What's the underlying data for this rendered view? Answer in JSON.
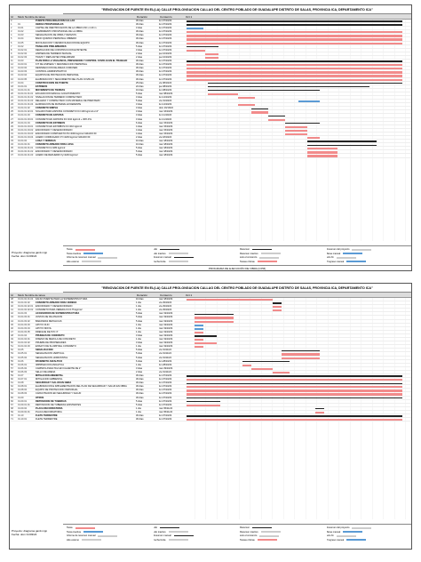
{
  "page": {
    "title": "\"RENOVACION DE PUENTE EN EL(LA) CALLE PROLONGACION CALLAO DEL CENTRO POBLADO DE GUADALUPE DISTRITO DE SALAS, PROVINCIA ICA, DEPARTAMENTO ICA\"",
    "header": {
      "id": "Id",
      "mode": "Modo",
      "name": "Nombre de tarea",
      "duration": "Duración",
      "start": "Comienzo",
      "timeline": [
        "Oct 1",
        "Oct 4",
        "Oct 7",
        "Oct 10",
        "Oct 13",
        "Oct 16",
        "Oct 19",
        "Oct 22",
        "Oct 25",
        "Oct 28",
        "Oct 31",
        "Nov 3",
        "Nov 6",
        "Nov 9",
        "Nov 12",
        "Nov 15",
        "Nov 18"
      ]
    },
    "project_label": "Proyecto: diagrama gantt.mpp",
    "date_label": "Fecha: dom 31/03/24",
    "footer": "PROGRAMA DE EJECUCIÓN DE OBRA (CPM)",
    "legend": [
      {
        "label": "Tarea",
        "style": "red"
      },
      {
        "label": "Hito",
        "style": "blk"
      },
      {
        "label": "Resumen",
        "style": "blk"
      },
      {
        "label": "Resumen del proyecto",
        "style": "gray"
      },
      {
        "label": "Tarea inactiva",
        "style": "blue"
      },
      {
        "label": "Hito inactivo",
        "style": "gray"
      },
      {
        "label": "Resumen inactivo",
        "style": "gray"
      },
      {
        "label": "Tarea manual",
        "style": "blue"
      },
      {
        "label": "Informe de resumen manual",
        "style": "gray"
      },
      {
        "label": "Resumen manual",
        "style": "blk"
      },
      {
        "label": "solo el comienzo",
        "style": "gray"
      },
      {
        "label": "solo fin",
        "style": "gray"
      },
      {
        "label": "Hito externo",
        "style": "gray"
      },
      {
        "label": "Fecha límite",
        "style": "gray"
      },
      {
        "label": "Tareas críticas",
        "style": "red"
      },
      {
        "label": "Progreso manual",
        "style": "blue"
      }
    ]
  },
  "sheet1_rows": [
    {
      "id": "0",
      "code": "",
      "name": "PUENTE PROLONGACION CALLAO",
      "dur": "30 días",
      "start": "lun 07/10/24",
      "kind": "summary",
      "bar": [
        0,
        100
      ]
    },
    {
      "id": "1",
      "code": "01",
      "name": "OBRAS PROVISIONALES",
      "dur": "30 días",
      "start": "lun 07/10/24",
      "kind": "summary",
      "bar": [
        0,
        100
      ]
    },
    {
      "id": "2",
      "code": "01.01",
      "name": "CARTEL DE IDENTIFICACION DE LA OBRA 3.60 x 2.40 m",
      "dur": "3 días",
      "start": "lun 07/10/24",
      "kind": "blue",
      "bar": [
        0,
        8
      ]
    },
    {
      "id": "3",
      "code": "01.02",
      "name": "CAMPAMENTO PROVISIONAL DE LA OBRA",
      "dur": "30 días",
      "start": "lun 07/10/24",
      "kind": "task",
      "bar": [
        0,
        100
      ]
    },
    {
      "id": "4",
      "code": "01.03",
      "name": "SEÑALIZACION DE OBRA Y DESVIOS",
      "dur": "30 días",
      "start": "lun 07/10/24",
      "kind": "task",
      "bar": [
        0,
        100
      ]
    },
    {
      "id": "5",
      "code": "01.04",
      "name": "BAÑO QUIMICO PERSONAL OBRERO",
      "dur": "30 días",
      "start": "lun 07/10/24",
      "kind": "task",
      "bar": [
        0,
        100
      ]
    },
    {
      "id": "6",
      "code": "01.05",
      "name": "MOVILIZACION Y DESMOVILIZACION DE EQUIPO",
      "dur": "30 días",
      "start": "lun 07/10/24",
      "kind": "task",
      "bar": [
        0,
        100
      ]
    },
    {
      "id": "7",
      "code": "01.02",
      "name": "TRABAJOS PRELIMINARES",
      "dur": "5 días",
      "start": "lun 07/10/24",
      "kind": "summary",
      "bar": [
        0,
        15
      ]
    },
    {
      "id": "8",
      "code": "01.02.01",
      "name": "DEMOLICION DE CONSTRUCCION EXISTENTE",
      "dur": "3 días",
      "start": "lun 07/10/24",
      "kind": "task",
      "bar": [
        0,
        9
      ]
    },
    {
      "id": "9",
      "code": "01.02.02",
      "name": "LIMPIEZA DE TERRENO MANUAL",
      "dur": "2 días",
      "start": "jue 10/10/24",
      "kind": "task",
      "bar": [
        9,
        15
      ]
    },
    {
      "id": "10",
      "code": "01.02.03",
      "name": "TRAZO Y REPLANTEO PRELIMINAR",
      "dur": "2 días",
      "start": "jue 10/10/24",
      "kind": "task",
      "bar": [
        9,
        15
      ]
    },
    {
      "id": "11",
      "code": "01.03",
      "name": "PLAN PARA LA VIGILANCIA, PREVENCION Y CONTROL COVID-19 EN EL TRABAJO",
      "dur": "30 días",
      "start": "lun 07/10/24",
      "kind": "summary",
      "bar": [
        0,
        100
      ]
    },
    {
      "id": "12",
      "code": "01.03.01",
      "name": "KIT DE LIMPIEZA Y DESINFECCION PERSONAL",
      "dur": "30 días",
      "start": "lun 07/10/24",
      "kind": "task",
      "bar": [
        0,
        100
      ]
    },
    {
      "id": "13",
      "code": "01.03.02",
      "name": "DESINFECCION DE AREAS COMUNES",
      "dur": "30 días",
      "start": "lun 07/10/24",
      "kind": "task",
      "bar": [
        0,
        100
      ]
    },
    {
      "id": "14",
      "code": "01.03.03",
      "name": "CONTROL ADMINISTRATIVO",
      "dur": "30 días",
      "start": "lun 07/10/24",
      "kind": "task",
      "bar": [
        0,
        100
      ]
    },
    {
      "id": "15",
      "code": "01.03.04",
      "name": "EQUIPOS DE PROTECCION PERSONAL",
      "dur": "30 días",
      "start": "lun 07/10/24",
      "kind": "task",
      "bar": [
        0,
        100
      ]
    },
    {
      "id": "16",
      "code": "01.03.05",
      "name": "ELABORACION Y SEGUIMIENTO DEL PLAN COVID-19",
      "dur": "30 días",
      "start": "lun 07/10/24",
      "kind": "task",
      "bar": [
        0,
        100
      ]
    },
    {
      "id": "17",
      "code": "01.04",
      "name": "CONSTRUCCION DE PUENTE",
      "dur": "25 días",
      "start": "vie 08/10/24",
      "kind": "summary",
      "bar": [
        10,
        100
      ]
    },
    {
      "id": "18",
      "code": "01.04.01",
      "name": "ESTRIBOS",
      "dur": "22 días",
      "start": "jue 08/10/24",
      "kind": "summary",
      "bar": [
        10,
        85
      ]
    },
    {
      "id": "19",
      "code": "01.04.01.01",
      "name": "MOVIMIENTO DE TIERRAS",
      "dur": "16 días",
      "start": "lun 08/10/24",
      "kind": "summary",
      "bar": [
        10,
        62
      ]
    },
    {
      "id": "20",
      "code": "01.04.01.01.01",
      "name": "EXCAVACION MANUAL C/AGOTAMIENTO",
      "dur": "5 días",
      "start": "mar 08/10/24",
      "kind": "task",
      "bar": [
        10,
        24
      ]
    },
    {
      "id": "21",
      "code": "01.04.01.01.02",
      "name": "NIVELACION DE TERRENO COMPACTADO",
      "dur": "3 días",
      "start": "lun 14/10/24",
      "kind": "task",
      "bar": [
        24,
        32
      ]
    },
    {
      "id": "22",
      "code": "01.04.01.01.03",
      "name": "RELLENO Y COMPACTADO CON MATERIAL DE PRESTAMO",
      "dur": "5 días",
      "start": "vie 31/10/24",
      "kind": "blue",
      "bar": [
        52,
        62
      ]
    },
    {
      "id": "23",
      "code": "01.04.01.01.04",
      "name": "ELIMINACION DE MATERIAL EXCEDENTE",
      "dur": "3 días",
      "start": "lun 14/10/24",
      "kind": "task",
      "bar": [
        24,
        32
      ]
    },
    {
      "id": "24",
      "code": "01.04.01.02",
      "name": "CONCRETO SIMPLE",
      "dur": "3 días",
      "start": "dom 16/10/24",
      "kind": "summary",
      "bar": [
        30,
        38
      ]
    },
    {
      "id": "25",
      "code": "01.04.01.02.01",
      "name": "SOLADO PARA ZAPATAS CONCRETO FC=100 kg/cm2 e=4\"",
      "dur": "3 días",
      "start": "mar 16/10/24",
      "kind": "task",
      "bar": [
        30,
        38
      ]
    },
    {
      "id": "26",
      "code": "01.04.01.03",
      "name": "CONCRETO EN ZAPATAS",
      "dur": "3 días",
      "start": "lun 11/10/24",
      "kind": "summary",
      "bar": [
        38,
        46
      ]
    },
    {
      "id": "27",
      "code": "01.04.01.03.01",
      "name": "CONCRETO EN ZAPATAS FC=210 kg/cm2 + 30% P.G",
      "dur": "3 días",
      "start": "lun 11/10/24",
      "kind": "task",
      "bar": [
        38,
        46
      ]
    },
    {
      "id": "28",
      "code": "01.04.01.04",
      "name": "CONCRETO EN ESTRIBOS",
      "dur": "6 días",
      "start": "mar 15/10/24",
      "kind": "summary",
      "bar": [
        46,
        62
      ]
    },
    {
      "id": "29",
      "code": "01.04.01.04.01",
      "name": "CONCRETO EN ESTRIBOS FC=210 kg/cm2",
      "dur": "4 días",
      "start": "mar 15/10/24",
      "kind": "task",
      "bar": [
        46,
        56
      ]
    },
    {
      "id": "30",
      "code": "01.04.01.04.02",
      "name": "ENCOFRADO Y DESENCOFRADO",
      "dur": "4 días",
      "start": "mar 15/10/24",
      "kind": "task",
      "bar": [
        46,
        56
      ]
    },
    {
      "id": "31",
      "code": "01.04.01.04.03",
      "name": "ENCOFRADO COMPUESTO PU=4000 kg/cm2 GRADO 60",
      "dur": "4 días",
      "start": "mar 15/10/24",
      "kind": "task",
      "bar": [
        46,
        56
      ]
    },
    {
      "id": "32",
      "code": "01.04.01.04.04",
      "name": "ACERO CORRUGADO FY=4200 kg/cm2 GRADO 60",
      "dur": "2 días",
      "start": "vie 18/10/24",
      "kind": "task",
      "bar": [
        56,
        62
      ]
    },
    {
      "id": "33",
      "code": "01.04.02",
      "name": "LOSA Y VEREDAS",
      "dur": "10 días",
      "start": "mar 18/10/24",
      "kind": "summary",
      "bar": [
        56,
        88
      ]
    },
    {
      "id": "34",
      "code": "01.04.02.01",
      "name": "CONCRETO ARMADO PARA LOSA",
      "dur": "10 días",
      "start": "mar 18/10/24",
      "kind": "summary",
      "bar": [
        56,
        88
      ]
    },
    {
      "id": "35",
      "code": "01.04.02.01.01",
      "name": "CONCRETO Fc=280 kg/cm2",
      "dur": "5 días",
      "start": "mar 18/10/24",
      "kind": "task",
      "bar": [
        56,
        70
      ]
    },
    {
      "id": "36",
      "code": "01.04.02.01.02",
      "name": "ENCOFRADO Y DESENCOFRADO",
      "dur": "5 días",
      "start": "mar 18/10/24",
      "kind": "task",
      "bar": [
        56,
        70
      ]
    },
    {
      "id": "37",
      "code": "01.04.02.01.03",
      "name": "ACERO DE REFUERZO fy=4200 kg/cm2",
      "dur": "5 días",
      "start": "mar 18/10/24",
      "kind": "task",
      "bar": [
        56,
        70
      ]
    }
  ],
  "sheet2_rows": [
    {
      "id": "38",
      "code": "01.04.02.01.04",
      "name": "FALSO PUENTE PARA LA SUPERESTRUCTURA",
      "dur": "10 días",
      "start": "mar 18/10/24",
      "kind": "task",
      "bar": [
        0,
        40
      ]
    },
    {
      "id": "39",
      "code": "01.04.02.02",
      "name": "CONCRETO ARMADO PARA VEREDA",
      "dur": "1 día",
      "start": "vie 29/10/24",
      "kind": "summary",
      "bar": [
        40,
        44
      ]
    },
    {
      "id": "40",
      "code": "01.04.02.02.01",
      "name": "ENCOFRADO Y DESENCOFRADO",
      "dur": "1 día",
      "start": "vie 29/10/24",
      "kind": "task",
      "bar": [
        40,
        44
      ]
    },
    {
      "id": "41",
      "code": "01.04.02.02.02",
      "name": "CONCRETO PARA VEREDA FC=175 kg/cm2",
      "dur": "1 día",
      "start": "vie 29/10/24",
      "kind": "task",
      "bar": [
        40,
        44
      ]
    },
    {
      "id": "42",
      "code": "01.04.03",
      "name": "ACCESORIOS DE SUPERESTRUCTURA",
      "dur": "5 días",
      "start": "mar 19/10/24",
      "kind": "summary",
      "bar": [
        4,
        22
      ]
    },
    {
      "id": "43",
      "code": "01.04.03.01",
      "name": "JUNTAS DE DILATACION",
      "dur": "5 días",
      "start": "mar 19/10/24",
      "kind": "task",
      "bar": [
        4,
        22
      ]
    },
    {
      "id": "44",
      "code": "01.04.03.02",
      "name": "BARANDAS METALICAS",
      "dur": "5 días",
      "start": "mar 19/10/24",
      "kind": "task",
      "bar": [
        4,
        22
      ]
    },
    {
      "id": "45",
      "code": "01.04.03.03",
      "name": "APOYO FIJO",
      "dur": "1 día",
      "start": "mar 19/10/24",
      "kind": "blue",
      "bar": [
        4,
        8
      ]
    },
    {
      "id": "46",
      "code": "01.04.03.04",
      "name": "APOYO MOVIL",
      "dur": "1 día",
      "start": "mar 19/10/24",
      "kind": "blue",
      "bar": [
        4,
        8
      ]
    },
    {
      "id": "47",
      "code": "01.04.03.05",
      "name": "DRENAJE DE PVC 3\"",
      "dur": "1 día",
      "start": "mar 19/10/24",
      "kind": "task",
      "bar": [
        4,
        8
      ]
    },
    {
      "id": "48",
      "code": "01.04.04",
      "name": "PRUEBAS DE CONCRETO",
      "dur": "3 días",
      "start": "mar 19/10/24",
      "kind": "summary",
      "bar": [
        4,
        14
      ]
    },
    {
      "id": "49",
      "code": "01.04.04.01",
      "name": "DISEÑO DE MEZCLA DE CONCRETO",
      "dur": "1 día",
      "start": "mar 19/10/24",
      "kind": "task",
      "bar": [
        4,
        8
      ]
    },
    {
      "id": "50",
      "code": "01.04.04.02",
      "name": "PRUEBA DE PROPIEDADES",
      "dur": "3 días",
      "start": "mar 19/10/24",
      "kind": "task",
      "bar": [
        4,
        14
      ]
    },
    {
      "id": "51",
      "code": "01.04.04.03",
      "name": "ENSAYO DE SLUMP DEL CONCRETO",
      "dur": "1 día",
      "start": "mar 19/10/24",
      "kind": "task",
      "bar": [
        4,
        8
      ]
    },
    {
      "id": "52",
      "code": "01.05",
      "name": "SEÑALIZACION",
      "dur": "5 días",
      "start": "vie 01/11/24",
      "kind": "summary",
      "bar": [
        44,
        62
      ]
    },
    {
      "id": "53",
      "code": "01.05.01",
      "name": "SEÑALIZACION VERTICAL",
      "dur": "5 días",
      "start": "vie 01/11/24",
      "kind": "task",
      "bar": [
        44,
        62
      ]
    },
    {
      "id": "54",
      "code": "01.05.02",
      "name": "SEÑALIZACION HORIZONTAL",
      "dur": "5 días",
      "start": "vie 01/11/24",
      "kind": "task",
      "bar": [
        44,
        62
      ]
    },
    {
      "id": "55",
      "code": "01.06",
      "name": "PAVIMENTO ASFALTICO",
      "dur": "6 días",
      "start": "lun 28/10/24",
      "kind": "summary",
      "bar": [
        26,
        48
      ]
    },
    {
      "id": "56",
      "code": "01.06.01",
      "name": "IMPRIMACION ASFALTICA",
      "dur": "1 día",
      "start": "lun 28/10/24",
      "kind": "task",
      "bar": [
        26,
        30
      ]
    },
    {
      "id": "57",
      "code": "01.06.02",
      "name": "CARPETA ASFALTICA EN CALIENTE DE 2\"",
      "dur": "3 días",
      "start": "mar 29/10/24",
      "kind": "task",
      "bar": [
        30,
        40
      ]
    },
    {
      "id": "58",
      "code": "01.06.03",
      "name": "SELLO DE ARENA",
      "dur": "2 días",
      "start": "vie 01/11/24",
      "kind": "task",
      "bar": [
        40,
        48
      ]
    },
    {
      "id": "59",
      "code": "01.07",
      "name": "MITIGACION AMBIENTAL",
      "dur": "30 días",
      "start": "lun 07/10/24",
      "kind": "summary",
      "bar": [
        0,
        100
      ]
    },
    {
      "id": "60",
      "code": "01.07.01",
      "name": "MITIGACION AMBIENTAL",
      "dur": "30 días",
      "start": "lun 07/10/24",
      "kind": "task",
      "bar": [
        0,
        100
      ]
    },
    {
      "id": "61",
      "code": "01.08",
      "name": "SEGURIDAD Y SALUD EN OBRA",
      "dur": "30 días",
      "start": "lun 07/10/24",
      "kind": "summary",
      "bar": [
        0,
        100
      ]
    },
    {
      "id": "62",
      "code": "01.08.01",
      "name": "ELABORACION E IMPLEMENTACION DEL PLAN DE SEGURIDAD Y SALUD EN OBRA",
      "dur": "30 días",
      "start": "lun 07/10/24",
      "kind": "task",
      "bar": [
        0,
        100
      ]
    },
    {
      "id": "63",
      "code": "01.08.02",
      "name": "EQUIPO DE PROTECCION INDIVIDUAL",
      "dur": "30 días",
      "start": "lun 07/10/24",
      "kind": "task",
      "bar": [
        0,
        100
      ]
    },
    {
      "id": "64",
      "code": "01.08.03",
      "name": "CAPACITACION EN SEGURIDAD Y SALUD",
      "dur": "30 días",
      "start": "lun 07/10/24",
      "kind": "task",
      "bar": [
        0,
        100
      ]
    },
    {
      "id": "65",
      "code": "01.09",
      "name": "OTROS",
      "dur": "30 días",
      "start": "lun 07/10/24",
      "kind": "summary",
      "bar": [
        0,
        100
      ]
    },
    {
      "id": "66",
      "code": "01.09.01",
      "name": "REPOSICION DE TUBERIAS",
      "dur": "5 días",
      "start": "lun 07/10/24",
      "kind": "summary",
      "bar": [
        0,
        16
      ]
    },
    {
      "id": "67",
      "code": "01.09.01.01",
      "name": "REPOSICION DE TUBERIAS EXISTENTES",
      "dur": "5 días",
      "start": "lun 07/10/24",
      "kind": "task",
      "bar": [
        0,
        16
      ]
    },
    {
      "id": "68",
      "code": "01.09.02",
      "name": "PLACA RECORDATORIA",
      "dur": "1 día",
      "start": "mar 05/11/24",
      "kind": "summary",
      "bar": [
        60,
        64
      ]
    },
    {
      "id": "69",
      "code": "01.09.02.01",
      "name": "PLACA RECORDATORIA",
      "dur": "1 día",
      "start": "mar 05/11/24",
      "kind": "task",
      "bar": [
        60,
        64
      ]
    },
    {
      "id": "70",
      "code": "01.10",
      "name": "FLETE TERRESTRE",
      "dur": "30 días",
      "start": "lun 07/10/24",
      "kind": "summary",
      "bar": [
        0,
        100
      ]
    },
    {
      "id": "71",
      "code": "01.10.01",
      "name": "FLETE TERRESTRE",
      "dur": "30 días",
      "start": "lun 07/10/24",
      "kind": "task",
      "bar": [
        0,
        100
      ]
    }
  ]
}
